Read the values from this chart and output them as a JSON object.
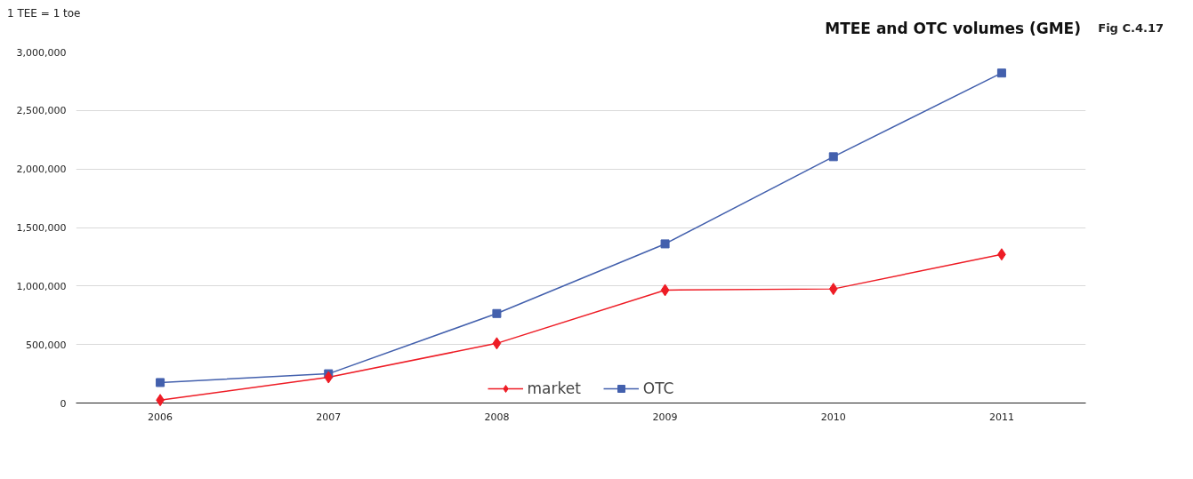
{
  "chart_data": {
    "type": "line",
    "title": "MTEE and OTC volumes (GME)",
    "annotations": [
      "1 TEE = 1 toe",
      "Fig C.4.17"
    ],
    "categories": [
      "2006",
      "2007",
      "2008",
      "2009",
      "2010",
      "2011"
    ],
    "series": [
      {
        "name": "market",
        "color": "#ee1c25",
        "marker": "diamond",
        "values": [
          25000,
          220000,
          510000,
          965000,
          975000,
          1270000
        ]
      },
      {
        "name": "OTC",
        "color": "#4360ad",
        "marker": "square",
        "values": [
          175000,
          250000,
          765000,
          1360000,
          2105000,
          2820000
        ]
      }
    ],
    "ylim": [
      0,
      3000000
    ],
    "yticks": [
      {
        "value": 0,
        "label": "0"
      },
      {
        "value": 500000,
        "label": "500,000"
      },
      {
        "value": 1000000,
        "label": "1,000,000"
      },
      {
        "value": 1500000,
        "label": "1,500,000"
      },
      {
        "value": 2000000,
        "label": "2,000,000"
      },
      {
        "value": 2500000,
        "label": "2,500,000"
      },
      {
        "value": 3000000,
        "label": "3,000,000"
      }
    ],
    "grid": "y",
    "legend": "bottom",
    "line_style": "solid"
  }
}
